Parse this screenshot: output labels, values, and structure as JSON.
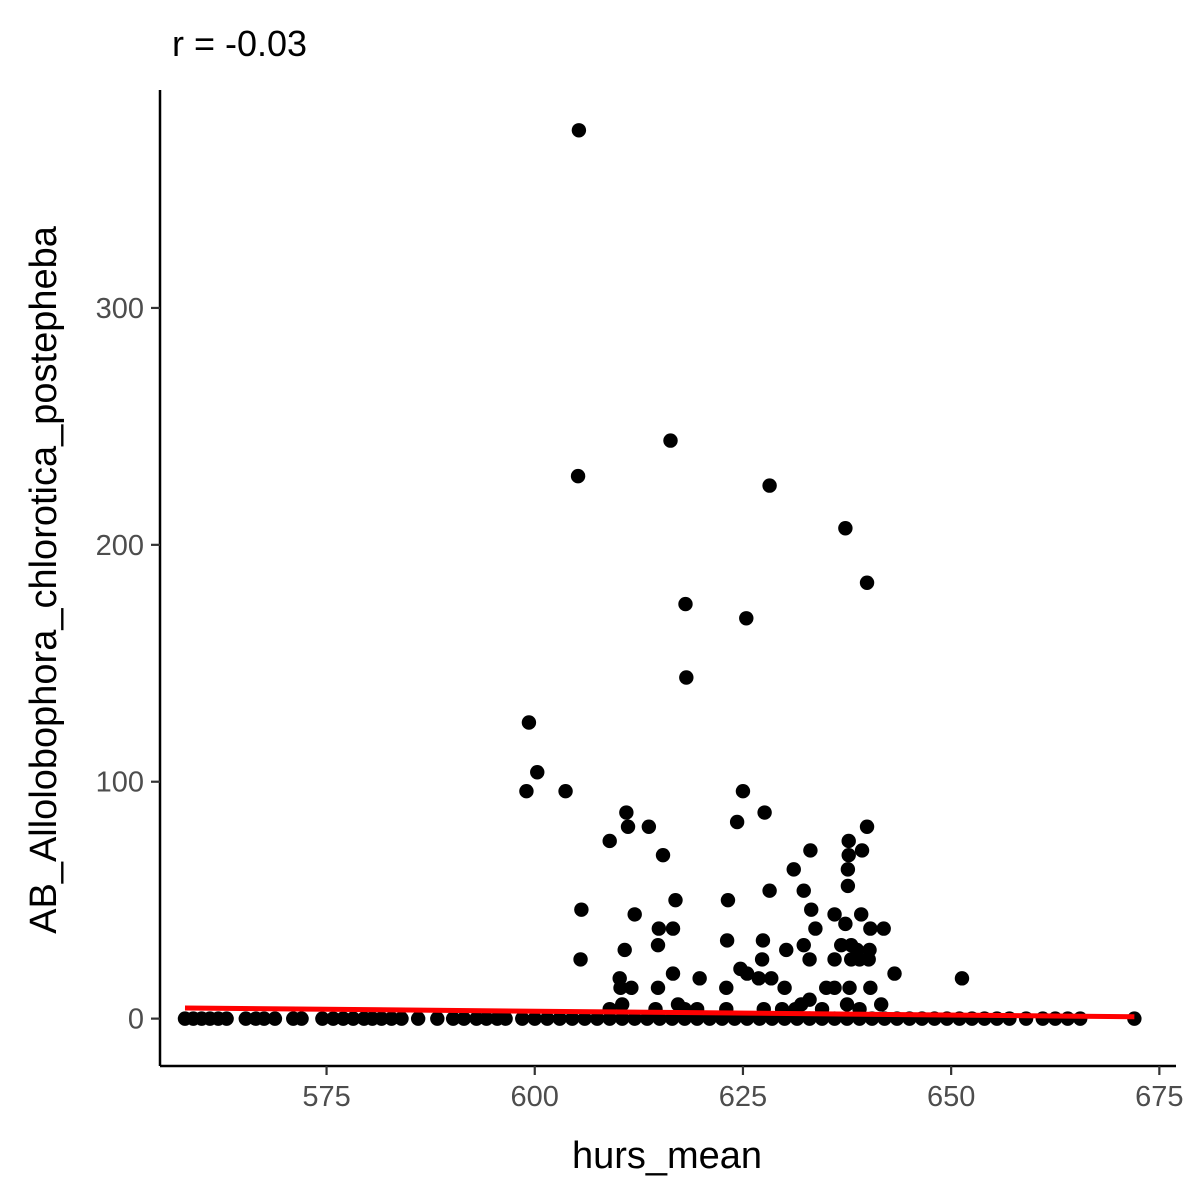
{
  "chart_data": {
    "type": "scatter",
    "title": "r = -0.03",
    "xlabel": "hurs_mean",
    "ylabel": "AB_Allolobophora_chlorotica_postepheba",
    "xlim": [
      555,
      677
    ],
    "ylim": [
      -20,
      392
    ],
    "x_ticks": [
      575,
      600,
      625,
      650,
      675
    ],
    "y_ticks": [
      0,
      100,
      200,
      300
    ],
    "grid": false,
    "legend": "none",
    "point_color": "#000000",
    "trend_color": "#ff0000",
    "trend_line": {
      "x": [
        558,
        672
      ],
      "y": [
        4.5,
        0.8
      ]
    },
    "points": [
      {
        "x": 605.3,
        "y": 375
      },
      {
        "x": 616.3,
        "y": 244
      },
      {
        "x": 605.2,
        "y": 229
      },
      {
        "x": 628.2,
        "y": 225
      },
      {
        "x": 637.3,
        "y": 207
      },
      {
        "x": 639.9,
        "y": 184
      },
      {
        "x": 618.1,
        "y": 175
      },
      {
        "x": 625.4,
        "y": 169
      },
      {
        "x": 618.2,
        "y": 144
      },
      {
        "x": 599.3,
        "y": 125
      },
      {
        "x": 600.3,
        "y": 104
      },
      {
        "x": 599.0,
        "y": 96
      },
      {
        "x": 603.7,
        "y": 96
      },
      {
        "x": 625.0,
        "y": 96
      },
      {
        "x": 611.0,
        "y": 87
      },
      {
        "x": 627.6,
        "y": 87
      },
      {
        "x": 611.2,
        "y": 81
      },
      {
        "x": 613.7,
        "y": 81
      },
      {
        "x": 624.3,
        "y": 83
      },
      {
        "x": 639.9,
        "y": 81
      },
      {
        "x": 609.0,
        "y": 75
      },
      {
        "x": 637.7,
        "y": 75
      },
      {
        "x": 633.1,
        "y": 71
      },
      {
        "x": 637.7,
        "y": 69
      },
      {
        "x": 639.3,
        "y": 71
      },
      {
        "x": 615.4,
        "y": 69
      },
      {
        "x": 631.1,
        "y": 63
      },
      {
        "x": 637.6,
        "y": 63
      },
      {
        "x": 632.3,
        "y": 54
      },
      {
        "x": 628.2,
        "y": 54
      },
      {
        "x": 637.6,
        "y": 56
      },
      {
        "x": 605.6,
        "y": 46
      },
      {
        "x": 616.9,
        "y": 50
      },
      {
        "x": 623.2,
        "y": 50
      },
      {
        "x": 612.0,
        "y": 44
      },
      {
        "x": 633.2,
        "y": 46
      },
      {
        "x": 636.0,
        "y": 44
      },
      {
        "x": 639.2,
        "y": 44
      },
      {
        "x": 614.9,
        "y": 38
      },
      {
        "x": 616.6,
        "y": 38
      },
      {
        "x": 633.7,
        "y": 38
      },
      {
        "x": 637.3,
        "y": 40
      },
      {
        "x": 640.3,
        "y": 38
      },
      {
        "x": 641.9,
        "y": 38
      },
      {
        "x": 623.1,
        "y": 33
      },
      {
        "x": 627.4,
        "y": 33
      },
      {
        "x": 632.3,
        "y": 31
      },
      {
        "x": 614.8,
        "y": 31
      },
      {
        "x": 630.2,
        "y": 29
      },
      {
        "x": 636.8,
        "y": 31
      },
      {
        "x": 638.0,
        "y": 31
      },
      {
        "x": 610.8,
        "y": 29
      },
      {
        "x": 638.7,
        "y": 29
      },
      {
        "x": 640.2,
        "y": 29
      },
      {
        "x": 605.5,
        "y": 25
      },
      {
        "x": 627.3,
        "y": 25
      },
      {
        "x": 633.0,
        "y": 25
      },
      {
        "x": 636.0,
        "y": 25
      },
      {
        "x": 638.0,
        "y": 25
      },
      {
        "x": 639.0,
        "y": 25
      },
      {
        "x": 640.1,
        "y": 25
      },
      {
        "x": 624.7,
        "y": 21
      },
      {
        "x": 625.5,
        "y": 19
      },
      {
        "x": 610.2,
        "y": 17
      },
      {
        "x": 616.6,
        "y": 19
      },
      {
        "x": 619.8,
        "y": 17
      },
      {
        "x": 626.9,
        "y": 17
      },
      {
        "x": 628.4,
        "y": 17
      },
      {
        "x": 643.2,
        "y": 19
      },
      {
        "x": 651.3,
        "y": 17
      },
      {
        "x": 610.3,
        "y": 13
      },
      {
        "x": 611.6,
        "y": 13
      },
      {
        "x": 623.0,
        "y": 13
      },
      {
        "x": 630.0,
        "y": 13
      },
      {
        "x": 635.0,
        "y": 13
      },
      {
        "x": 636.0,
        "y": 13
      },
      {
        "x": 637.8,
        "y": 13
      },
      {
        "x": 640.3,
        "y": 13
      },
      {
        "x": 614.8,
        "y": 13
      },
      {
        "x": 617.2,
        "y": 6
      },
      {
        "x": 618.0,
        "y": 4
      },
      {
        "x": 609.0,
        "y": 4
      },
      {
        "x": 610.5,
        "y": 6
      },
      {
        "x": 614.5,
        "y": 4
      },
      {
        "x": 619.5,
        "y": 4
      },
      {
        "x": 623.0,
        "y": 4
      },
      {
        "x": 627.5,
        "y": 4
      },
      {
        "x": 629.7,
        "y": 4
      },
      {
        "x": 632.0,
        "y": 6
      },
      {
        "x": 633.0,
        "y": 8
      },
      {
        "x": 634.5,
        "y": 4
      },
      {
        "x": 637.5,
        "y": 6
      },
      {
        "x": 641.6,
        "y": 6
      },
      {
        "x": 639.0,
        "y": 4
      },
      {
        "x": 631.3,
        "y": 4
      },
      {
        "x": 558.0,
        "y": 0
      },
      {
        "x": 559.0,
        "y": 0
      },
      {
        "x": 560.0,
        "y": 0
      },
      {
        "x": 561.0,
        "y": 0
      },
      {
        "x": 562.0,
        "y": 0
      },
      {
        "x": 563.0,
        "y": 0
      },
      {
        "x": 565.3,
        "y": 0
      },
      {
        "x": 566.5,
        "y": 0
      },
      {
        "x": 567.5,
        "y": 0
      },
      {
        "x": 568.8,
        "y": 0
      },
      {
        "x": 571.0,
        "y": 0
      },
      {
        "x": 572.0,
        "y": 0
      },
      {
        "x": 574.5,
        "y": 0
      },
      {
        "x": 575.8,
        "y": 0
      },
      {
        "x": 577.0,
        "y": 0
      },
      {
        "x": 578.2,
        "y": 0
      },
      {
        "x": 579.5,
        "y": 0
      },
      {
        "x": 580.5,
        "y": 0
      },
      {
        "x": 581.6,
        "y": 0
      },
      {
        "x": 582.8,
        "y": 0
      },
      {
        "x": 584.0,
        "y": 0
      },
      {
        "x": 586.0,
        "y": 0
      },
      {
        "x": 588.3,
        "y": 0
      },
      {
        "x": 590.2,
        "y": 0
      },
      {
        "x": 591.5,
        "y": 0
      },
      {
        "x": 593.0,
        "y": 0
      },
      {
        "x": 594.2,
        "y": 0
      },
      {
        "x": 595.5,
        "y": 0
      },
      {
        "x": 596.5,
        "y": 0
      },
      {
        "x": 598.5,
        "y": 0
      },
      {
        "x": 600.0,
        "y": 0
      },
      {
        "x": 601.5,
        "y": 0
      },
      {
        "x": 603.0,
        "y": 0
      },
      {
        "x": 604.5,
        "y": 0
      },
      {
        "x": 606.0,
        "y": 0
      },
      {
        "x": 607.5,
        "y": 0
      },
      {
        "x": 609.0,
        "y": 0
      },
      {
        "x": 610.5,
        "y": 0
      },
      {
        "x": 612.0,
        "y": 0
      },
      {
        "x": 613.5,
        "y": 0
      },
      {
        "x": 615.0,
        "y": 0
      },
      {
        "x": 616.5,
        "y": 0
      },
      {
        "x": 618.0,
        "y": 0
      },
      {
        "x": 619.5,
        "y": 0
      },
      {
        "x": 621.0,
        "y": 0
      },
      {
        "x": 622.5,
        "y": 0
      },
      {
        "x": 624.0,
        "y": 0
      },
      {
        "x": 625.5,
        "y": 0
      },
      {
        "x": 627.0,
        "y": 0
      },
      {
        "x": 628.5,
        "y": 0
      },
      {
        "x": 630.0,
        "y": 0
      },
      {
        "x": 631.5,
        "y": 0
      },
      {
        "x": 633.0,
        "y": 0
      },
      {
        "x": 634.5,
        "y": 0
      },
      {
        "x": 636.0,
        "y": 0
      },
      {
        "x": 637.5,
        "y": 0
      },
      {
        "x": 639.0,
        "y": 0
      },
      {
        "x": 640.5,
        "y": 0
      },
      {
        "x": 642.0,
        "y": 0
      },
      {
        "x": 643.5,
        "y": 0
      },
      {
        "x": 645.0,
        "y": 0
      },
      {
        "x": 646.5,
        "y": 0
      },
      {
        "x": 648.0,
        "y": 0
      },
      {
        "x": 649.5,
        "y": 0
      },
      {
        "x": 651.0,
        "y": 0
      },
      {
        "x": 652.5,
        "y": 0
      },
      {
        "x": 654.0,
        "y": 0
      },
      {
        "x": 655.5,
        "y": 0
      },
      {
        "x": 657.0,
        "y": 0
      },
      {
        "x": 659.0,
        "y": 0
      },
      {
        "x": 661.0,
        "y": 0
      },
      {
        "x": 662.5,
        "y": 0
      },
      {
        "x": 664.0,
        "y": 0
      },
      {
        "x": 665.5,
        "y": 0
      },
      {
        "x": 672.0,
        "y": 0
      }
    ]
  }
}
